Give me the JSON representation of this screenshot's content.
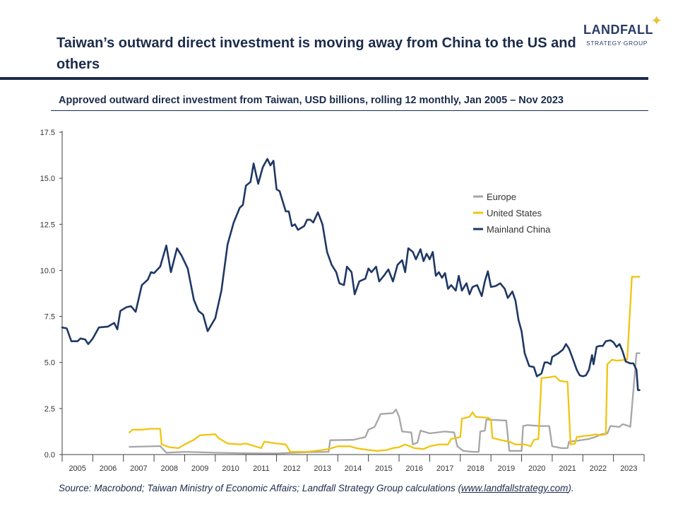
{
  "header": {
    "title": "Taiwan’s outward direct investment is moving away from China to the US and others",
    "logo_name": "LANDFALL",
    "logo_tagline": "STRATEGY GROUP",
    "logo_star_icon": "four-point-star-icon",
    "logo_star_color": "#e9c23a"
  },
  "chart_data": {
    "type": "line",
    "title": "Approved outward direct investment from Taiwan, USD billions, rolling 12 monthly, Jan 2005 – Nov 2023",
    "xlabel": "",
    "ylabel": "",
    "ylim": [
      0,
      17.5
    ],
    "xlim": [
      2005.0,
      2024.0
    ],
    "y_ticks": [
      "0.0",
      "2.5",
      "5.0",
      "7.5",
      "10.0",
      "12.5",
      "15.0",
      "17.5"
    ],
    "x_tick_labels": [
      "2005",
      "2006",
      "2007",
      "2008",
      "2009",
      "2010",
      "2011",
      "2012",
      "2013",
      "2014",
      "2015",
      "2016",
      "2017",
      "2018",
      "2019",
      "2020",
      "2021",
      "2022",
      "2023"
    ],
    "grid": false,
    "legend_position": "center-right",
    "series": [
      {
        "name": "Europe",
        "color": "#a6a6a6",
        "points": [
          [
            2007.2,
            0.42
          ],
          [
            2008.2,
            0.46
          ],
          [
            2008.4,
            0.1
          ],
          [
            2009.0,
            0.15
          ],
          [
            2010.0,
            0.1
          ],
          [
            2011.0,
            0.07
          ],
          [
            2012.0,
            0.06
          ],
          [
            2013.0,
            0.13
          ],
          [
            2013.7,
            0.15
          ],
          [
            2013.75,
            0.78
          ],
          [
            2014.5,
            0.8
          ],
          [
            2014.9,
            0.95
          ],
          [
            2015.0,
            1.35
          ],
          [
            2015.2,
            1.5
          ],
          [
            2015.4,
            2.2
          ],
          [
            2015.8,
            2.25
          ],
          [
            2015.9,
            2.45
          ],
          [
            2016.0,
            2.05
          ],
          [
            2016.1,
            1.25
          ],
          [
            2016.4,
            1.2
          ],
          [
            2016.45,
            0.55
          ],
          [
            2016.6,
            0.65
          ],
          [
            2016.7,
            1.3
          ],
          [
            2017.0,
            1.15
          ],
          [
            2017.5,
            1.25
          ],
          [
            2017.8,
            1.2
          ],
          [
            2017.9,
            0.45
          ],
          [
            2018.1,
            0.2
          ],
          [
            2018.4,
            0.15
          ],
          [
            2018.6,
            0.15
          ],
          [
            2018.65,
            1.25
          ],
          [
            2018.8,
            1.3
          ],
          [
            2018.85,
            1.9
          ],
          [
            2019.5,
            1.85
          ],
          [
            2019.6,
            0.2
          ],
          [
            2020.0,
            0.2
          ],
          [
            2020.05,
            1.55
          ],
          [
            2020.2,
            1.6
          ],
          [
            2020.6,
            1.55
          ],
          [
            2020.9,
            1.55
          ],
          [
            2021.0,
            0.45
          ],
          [
            2021.3,
            0.35
          ],
          [
            2021.5,
            0.35
          ],
          [
            2021.55,
            0.7
          ],
          [
            2021.8,
            0.75
          ],
          [
            2022.0,
            0.8
          ],
          [
            2022.2,
            0.85
          ],
          [
            2022.4,
            0.95
          ],
          [
            2022.6,
            1.1
          ],
          [
            2022.8,
            1.15
          ],
          [
            2022.9,
            1.55
          ],
          [
            2023.2,
            1.5
          ],
          [
            2023.3,
            1.65
          ],
          [
            2023.5,
            1.55
          ],
          [
            2023.55,
            1.5
          ],
          [
            2023.75,
            5.5
          ],
          [
            2023.85,
            5.5
          ]
        ]
      },
      {
        "name": "United States",
        "color": "#f1c40f",
        "points": [
          [
            2007.2,
            1.2
          ],
          [
            2007.3,
            1.35
          ],
          [
            2007.6,
            1.35
          ],
          [
            2007.9,
            1.4
          ],
          [
            2008.2,
            1.4
          ],
          [
            2008.25,
            0.55
          ],
          [
            2008.5,
            0.4
          ],
          [
            2008.8,
            0.35
          ],
          [
            2009.0,
            0.55
          ],
          [
            2009.3,
            0.8
          ],
          [
            2009.5,
            1.05
          ],
          [
            2010.0,
            1.1
          ],
          [
            2010.1,
            0.9
          ],
          [
            2010.4,
            0.6
          ],
          [
            2010.8,
            0.55
          ],
          [
            2011.0,
            0.6
          ],
          [
            2011.3,
            0.45
          ],
          [
            2011.5,
            0.35
          ],
          [
            2011.6,
            0.7
          ],
          [
            2011.8,
            0.65
          ],
          [
            2012.0,
            0.6
          ],
          [
            2012.3,
            0.55
          ],
          [
            2012.45,
            0.15
          ],
          [
            2013.0,
            0.15
          ],
          [
            2013.5,
            0.25
          ],
          [
            2013.7,
            0.3
          ],
          [
            2014.0,
            0.45
          ],
          [
            2014.4,
            0.45
          ],
          [
            2014.6,
            0.35
          ],
          [
            2015.0,
            0.25
          ],
          [
            2015.3,
            0.2
          ],
          [
            2015.6,
            0.25
          ],
          [
            2015.8,
            0.35
          ],
          [
            2016.0,
            0.4
          ],
          [
            2016.2,
            0.55
          ],
          [
            2016.5,
            0.35
          ],
          [
            2016.8,
            0.3
          ],
          [
            2017.0,
            0.45
          ],
          [
            2017.3,
            0.55
          ],
          [
            2017.6,
            0.55
          ],
          [
            2017.7,
            0.85
          ],
          [
            2018.0,
            0.95
          ],
          [
            2018.05,
            1.95
          ],
          [
            2018.3,
            2.05
          ],
          [
            2018.4,
            2.3
          ],
          [
            2018.5,
            2.05
          ],
          [
            2018.9,
            2.0
          ],
          [
            2019.0,
            1.9
          ],
          [
            2019.05,
            0.9
          ],
          [
            2019.3,
            0.8
          ],
          [
            2019.6,
            0.7
          ],
          [
            2019.8,
            0.55
          ],
          [
            2020.1,
            0.55
          ],
          [
            2020.3,
            0.45
          ],
          [
            2020.4,
            0.8
          ],
          [
            2020.55,
            0.85
          ],
          [
            2020.65,
            4.15
          ],
          [
            2020.9,
            4.2
          ],
          [
            2021.1,
            4.25
          ],
          [
            2021.25,
            4.0
          ],
          [
            2021.5,
            3.95
          ],
          [
            2021.6,
            0.55
          ],
          [
            2021.75,
            0.6
          ],
          [
            2021.8,
            0.95
          ],
          [
            2022.0,
            1.0
          ],
          [
            2022.3,
            1.05
          ],
          [
            2022.4,
            1.1
          ],
          [
            2022.6,
            1.05
          ],
          [
            2022.75,
            1.1
          ],
          [
            2022.8,
            4.9
          ],
          [
            2022.95,
            5.15
          ],
          [
            2023.1,
            5.1
          ],
          [
            2023.45,
            5.15
          ],
          [
            2023.6,
            9.65
          ],
          [
            2023.85,
            9.65
          ]
        ]
      },
      {
        "name": "Mainland China",
        "color": "#1f3864",
        "points": [
          [
            2005.0,
            6.9
          ],
          [
            2005.15,
            6.85
          ],
          [
            2005.3,
            6.15
          ],
          [
            2005.5,
            6.15
          ],
          [
            2005.6,
            6.3
          ],
          [
            2005.75,
            6.25
          ],
          [
            2005.85,
            6.0
          ],
          [
            2006.0,
            6.3
          ],
          [
            2006.2,
            6.9
          ],
          [
            2006.5,
            6.95
          ],
          [
            2006.7,
            7.15
          ],
          [
            2006.8,
            6.8
          ],
          [
            2006.9,
            7.8
          ],
          [
            2007.1,
            8.0
          ],
          [
            2007.25,
            8.05
          ],
          [
            2007.4,
            7.75
          ],
          [
            2007.6,
            9.2
          ],
          [
            2007.8,
            9.5
          ],
          [
            2007.9,
            9.9
          ],
          [
            2008.0,
            9.85
          ],
          [
            2008.2,
            10.2
          ],
          [
            2008.4,
            11.35
          ],
          [
            2008.55,
            9.9
          ],
          [
            2008.75,
            11.2
          ],
          [
            2008.9,
            10.8
          ],
          [
            2009.1,
            10.1
          ],
          [
            2009.3,
            8.4
          ],
          [
            2009.45,
            7.8
          ],
          [
            2009.6,
            7.6
          ],
          [
            2009.75,
            6.7
          ],
          [
            2010.0,
            7.4
          ],
          [
            2010.2,
            8.9
          ],
          [
            2010.4,
            11.4
          ],
          [
            2010.6,
            12.6
          ],
          [
            2010.8,
            13.4
          ],
          [
            2010.9,
            13.55
          ],
          [
            2011.0,
            14.6
          ],
          [
            2011.15,
            14.8
          ],
          [
            2011.25,
            15.8
          ],
          [
            2011.4,
            14.7
          ],
          [
            2011.55,
            15.6
          ],
          [
            2011.7,
            16.05
          ],
          [
            2011.8,
            15.7
          ],
          [
            2011.9,
            15.95
          ],
          [
            2012.0,
            14.4
          ],
          [
            2012.1,
            14.3
          ],
          [
            2012.3,
            13.2
          ],
          [
            2012.4,
            13.2
          ],
          [
            2012.5,
            12.4
          ],
          [
            2012.6,
            12.5
          ],
          [
            2012.7,
            12.2
          ],
          [
            2012.9,
            12.4
          ],
          [
            2013.0,
            12.75
          ],
          [
            2013.1,
            12.75
          ],
          [
            2013.2,
            12.6
          ],
          [
            2013.35,
            13.15
          ],
          [
            2013.5,
            12.5
          ],
          [
            2013.65,
            11.0
          ],
          [
            2013.8,
            10.3
          ],
          [
            2013.95,
            9.9
          ],
          [
            2014.05,
            9.3
          ],
          [
            2014.2,
            9.2
          ],
          [
            2014.3,
            10.2
          ],
          [
            2014.45,
            9.9
          ],
          [
            2014.55,
            8.7
          ],
          [
            2014.7,
            9.4
          ],
          [
            2014.9,
            9.55
          ],
          [
            2015.0,
            10.1
          ],
          [
            2015.1,
            9.9
          ],
          [
            2015.25,
            10.2
          ],
          [
            2015.35,
            9.4
          ],
          [
            2015.5,
            9.7
          ],
          [
            2015.65,
            10.05
          ],
          [
            2015.8,
            9.4
          ],
          [
            2015.95,
            10.3
          ],
          [
            2016.1,
            10.55
          ],
          [
            2016.2,
            9.9
          ],
          [
            2016.3,
            11.2
          ],
          [
            2016.45,
            11.0
          ],
          [
            2016.55,
            10.6
          ],
          [
            2016.7,
            11.15
          ],
          [
            2016.8,
            10.5
          ],
          [
            2016.9,
            10.9
          ],
          [
            2017.0,
            10.6
          ],
          [
            2017.1,
            11.0
          ],
          [
            2017.2,
            9.7
          ],
          [
            2017.3,
            9.9
          ],
          [
            2017.4,
            9.6
          ],
          [
            2017.5,
            9.85
          ],
          [
            2017.6,
            9.0
          ],
          [
            2017.7,
            9.2
          ],
          [
            2017.85,
            8.9
          ],
          [
            2017.95,
            9.7
          ],
          [
            2018.05,
            8.9
          ],
          [
            2018.2,
            9.3
          ],
          [
            2018.3,
            8.7
          ],
          [
            2018.4,
            9.1
          ],
          [
            2018.55,
            9.2
          ],
          [
            2018.7,
            8.6
          ],
          [
            2018.8,
            9.4
          ],
          [
            2018.9,
            9.95
          ],
          [
            2019.0,
            9.1
          ],
          [
            2019.15,
            9.15
          ],
          [
            2019.3,
            9.3
          ],
          [
            2019.45,
            9.0
          ],
          [
            2019.55,
            8.5
          ],
          [
            2019.7,
            8.85
          ],
          [
            2019.8,
            8.35
          ],
          [
            2019.9,
            7.3
          ],
          [
            2020.0,
            6.7
          ],
          [
            2020.1,
            5.5
          ],
          [
            2020.25,
            4.8
          ],
          [
            2020.4,
            4.75
          ],
          [
            2020.5,
            4.25
          ],
          [
            2020.65,
            4.4
          ],
          [
            2020.75,
            5.0
          ],
          [
            2020.85,
            5.0
          ],
          [
            2020.95,
            4.9
          ],
          [
            2021.0,
            5.3
          ],
          [
            2021.2,
            5.5
          ],
          [
            2021.35,
            5.7
          ],
          [
            2021.45,
            6.0
          ],
          [
            2021.55,
            5.75
          ],
          [
            2021.65,
            5.3
          ],
          [
            2021.8,
            4.6
          ],
          [
            2021.9,
            4.3
          ],
          [
            2022.0,
            4.25
          ],
          [
            2022.1,
            4.3
          ],
          [
            2022.2,
            4.6
          ],
          [
            2022.3,
            5.4
          ],
          [
            2022.35,
            4.9
          ],
          [
            2022.45,
            5.85
          ],
          [
            2022.55,
            5.9
          ],
          [
            2022.65,
            5.9
          ],
          [
            2022.75,
            6.15
          ],
          [
            2022.9,
            6.2
          ],
          [
            2023.0,
            6.1
          ],
          [
            2023.1,
            5.85
          ],
          [
            2023.2,
            6.0
          ],
          [
            2023.3,
            5.6
          ],
          [
            2023.4,
            5.05
          ],
          [
            2023.55,
            4.95
          ],
          [
            2023.65,
            4.95
          ],
          [
            2023.75,
            4.6
          ],
          [
            2023.8,
            3.5
          ],
          [
            2023.85,
            3.5
          ]
        ]
      }
    ]
  },
  "footer": {
    "source_prefix": "Source: Macrobond; Taiwan Ministry of Economic Affairs; Landfall Strategy Group calculations (",
    "source_link": "www.landfallstrategy.com",
    "source_suffix": ")."
  }
}
